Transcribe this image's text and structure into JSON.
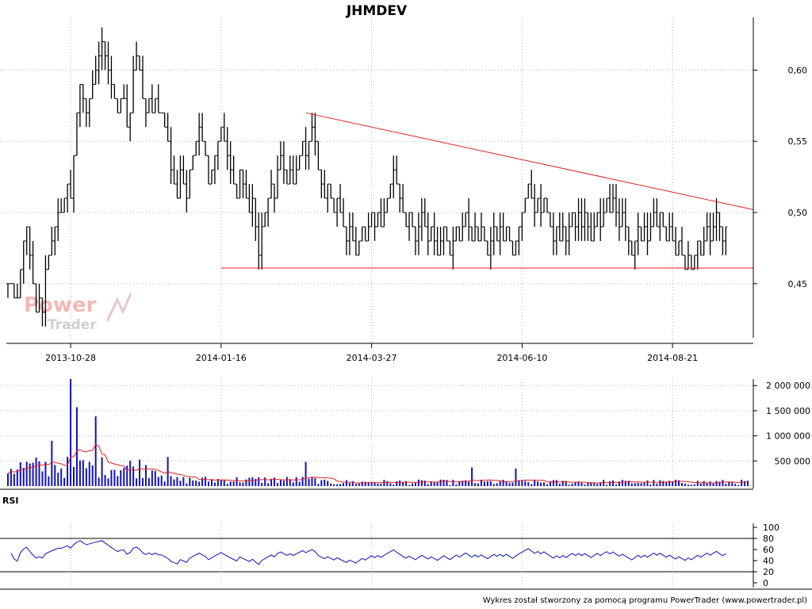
{
  "chart_data": [
    {
      "type": "ohlc",
      "title": "JHMDEV",
      "ylim": [
        0.412,
        0.637
      ],
      "y_ticks": [
        "0,60",
        "0,55",
        "0,50",
        "0,45"
      ],
      "y_tick_values": [
        0.6,
        0.55,
        0.5,
        0.45
      ],
      "x_tick_labels": [
        "2013-10-28",
        "2014-01-16",
        "2014-03-27",
        "2014-06-10",
        "2014-08-21"
      ],
      "x_tick_bar_index": [
        20,
        68,
        116,
        164,
        212
      ],
      "bar_count": 237,
      "grid": true,
      "closes": [
        0.45,
        0.45,
        0.44,
        0.44,
        0.46,
        0.48,
        0.49,
        0.47,
        0.45,
        0.43,
        0.44,
        0.43,
        0.46,
        0.47,
        0.48,
        0.49,
        0.5,
        0.5,
        0.51,
        0.52,
        0.51,
        0.54,
        0.57,
        0.59,
        0.58,
        0.57,
        0.58,
        0.59,
        0.6,
        0.61,
        0.62,
        0.61,
        0.6,
        0.59,
        0.58,
        0.57,
        0.58,
        0.58,
        0.56,
        0.57,
        0.6,
        0.61,
        0.6,
        0.58,
        0.57,
        0.58,
        0.57,
        0.58,
        0.57,
        0.57,
        0.56,
        0.55,
        0.53,
        0.52,
        0.51,
        0.53,
        0.52,
        0.51,
        0.53,
        0.54,
        0.55,
        0.56,
        0.55,
        0.54,
        0.52,
        0.53,
        0.54,
        0.55,
        0.56,
        0.55,
        0.54,
        0.53,
        0.52,
        0.51,
        0.53,
        0.52,
        0.51,
        0.5,
        0.51,
        0.49,
        0.47,
        0.49,
        0.5,
        0.51,
        0.52,
        0.51,
        0.53,
        0.54,
        0.53,
        0.52,
        0.53,
        0.52,
        0.53,
        0.54,
        0.55,
        0.54,
        0.55,
        0.56,
        0.55,
        0.53,
        0.52,
        0.51,
        0.52,
        0.51,
        0.5,
        0.51,
        0.5,
        0.49,
        0.48,
        0.49,
        0.48,
        0.47,
        0.48,
        0.49,
        0.48,
        0.49,
        0.5,
        0.49,
        0.5,
        0.49,
        0.5,
        0.51,
        0.52,
        0.53,
        0.52,
        0.51,
        0.5,
        0.49,
        0.5,
        0.49,
        0.48,
        0.49,
        0.5,
        0.49,
        0.48,
        0.49,
        0.48,
        0.47,
        0.48,
        0.49,
        0.48,
        0.47,
        0.48,
        0.49,
        0.48,
        0.49,
        0.5,
        0.49,
        0.48,
        0.49,
        0.48,
        0.49,
        0.48,
        0.47,
        0.48,
        0.49,
        0.48,
        0.49,
        0.48,
        0.49,
        0.48,
        0.47,
        0.48,
        0.49,
        0.5,
        0.51,
        0.52,
        0.51,
        0.5,
        0.51,
        0.5,
        0.51,
        0.5,
        0.49,
        0.48,
        0.49,
        0.48,
        0.49,
        0.48,
        0.49,
        0.5,
        0.49,
        0.5,
        0.49,
        0.5,
        0.49,
        0.48,
        0.49,
        0.5,
        0.49,
        0.5,
        0.51,
        0.5,
        0.51,
        0.5,
        0.49,
        0.5,
        0.49,
        0.48,
        0.47,
        0.48,
        0.49,
        0.48,
        0.49,
        0.48,
        0.49,
        0.5,
        0.49,
        0.5,
        0.49,
        0.48,
        0.49,
        0.48,
        0.47,
        0.48,
        0.47,
        0.46,
        0.47,
        0.46,
        0.47,
        0.48,
        0.47,
        0.48,
        0.49,
        0.48,
        0.49,
        0.5,
        0.49,
        0.48,
        0.49
      ],
      "trendlines": [
        {
          "from": [
            95,
            0.57
          ],
          "to": [
            237,
            0.502
          ]
        },
        {
          "from": [
            68,
            0.461
          ],
          "to": [
            237,
            0.461
          ]
        }
      ],
      "colors": {
        "bars": "#000000",
        "trendline": "#e02020"
      }
    },
    {
      "type": "bar",
      "title": "",
      "y_ticks": [
        "2 000 000",
        "1 500 000",
        "1 000 000",
        "500 000"
      ],
      "y_tick_values": [
        2000000,
        1500000,
        1000000,
        500000
      ],
      "ylim": [
        0,
        2130000
      ],
      "peaks": [
        {
          "bar": 20,
          "value": 2130000
        },
        {
          "bar": 22,
          "value": 1570000
        },
        {
          "bar": 28,
          "value": 1390000
        },
        {
          "bar": 14,
          "value": 900000
        },
        {
          "bar": 51,
          "value": 580000
        },
        {
          "bar": 95,
          "value": 480000
        },
        {
          "bar": 148,
          "value": 370000
        },
        {
          "bar": 162,
          "value": 350000
        }
      ],
      "colors": {
        "bars": "#1010c0",
        "average": "#e02020"
      }
    },
    {
      "type": "line",
      "title": "RSI",
      "y_ticks": [
        "100",
        "80",
        "60",
        "40",
        "20",
        "0"
      ],
      "y_tick_values": [
        100,
        80,
        60,
        40,
        20,
        0
      ],
      "ylim": [
        0,
        100
      ],
      "levels": [
        80,
        20
      ],
      "colors": {
        "line": "#1010c0",
        "levels": "#000000"
      }
    }
  ],
  "watermark": {
    "line1": "Power",
    "line2": "Trader"
  },
  "footer": "Wykres został stworzony za pomocą programu PowerTrader (www.powertrader.pl)"
}
